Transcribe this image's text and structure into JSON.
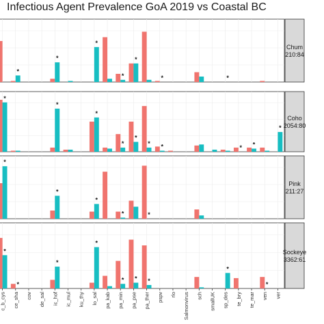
{
  "chart_data": {
    "type": "bar",
    "title": "Infectious Agent Prevalence GoA 2019 vs Coastal BC",
    "colors": {
      "goa": "#F0746E",
      "bc": "#17BEC2",
      "strip_bg": "#D9D9D9",
      "grid": "#EBEBEB"
    },
    "categories": [
      "c_b_cys",
      "ce_sha",
      "cov",
      "de_sal",
      "ic_hof",
      "ic_mul",
      "ku_thy",
      "lo_sal",
      "pa_kab",
      "pa_min",
      "pa_pse",
      "pa_ther",
      "pspv",
      "rlo",
      "Salmonvirus",
      "sch",
      "smallUK",
      "sp_des",
      "te_bry",
      "te_mar",
      "ven",
      "ver"
    ],
    "ylim": [
      0,
      1
    ],
    "panels": [
      {
        "strip_name": "Chum",
        "strip_value": "210:84",
        "goa": [
          0.75,
          0.02,
          0,
          0,
          0.06,
          0,
          0,
          0,
          0.82,
          0.15,
          0.34,
          0.92,
          0.02,
          0,
          0,
          0.18,
          0,
          0,
          0,
          0,
          0.02,
          0
        ],
        "bc": [
          0,
          0.12,
          0,
          0,
          0.36,
          0.02,
          0,
          0.64,
          0.06,
          0.04,
          0.34,
          0.04,
          0,
          0,
          0,
          0.1,
          0,
          0,
          0,
          0,
          0,
          0
        ],
        "stars": [
          1,
          4,
          7,
          9,
          10,
          12,
          17
        ]
      },
      {
        "strip_name": "Coho",
        "strip_value": "2054:80",
        "goa": [
          1.0,
          0.02,
          0,
          0,
          0.08,
          0.04,
          0,
          0.58,
          0.08,
          0.34,
          0.58,
          0.88,
          0.1,
          0.02,
          0,
          0.12,
          0,
          0.04,
          0.08,
          0.08,
          0.08,
          0
        ],
        "bc": [
          0.95,
          0.02,
          0,
          0,
          0.83,
          0.04,
          0,
          0.66,
          0.06,
          0.08,
          0.19,
          0.08,
          0.02,
          0,
          0,
          0.14,
          0.04,
          0.02,
          0,
          0.06,
          0.02,
          0.38
        ],
        "stars": [
          0,
          4,
          7,
          9,
          10,
          11,
          12,
          18,
          19,
          21
        ]
      },
      {
        "strip_name": "Pink",
        "strip_value": "211:27",
        "goa": [
          0.65,
          0,
          0,
          0,
          0.15,
          0,
          0,
          0.13,
          0.86,
          0.13,
          0.33,
          0.97,
          0,
          0,
          0,
          0.17,
          0,
          0,
          0,
          0,
          0,
          0
        ],
        "bc": [
          0.96,
          0,
          0,
          0,
          0.42,
          0,
          0,
          0.27,
          0,
          0.02,
          0.22,
          0,
          0,
          0,
          0,
          0.06,
          0,
          0,
          0,
          0,
          0,
          0
        ],
        "stars": [
          0,
          4,
          7,
          9,
          11
        ]
      },
      {
        "strip_name": "Sockeye",
        "strip_value": "3362:61",
        "goa": [
          0.88,
          0.08,
          0,
          0,
          0.15,
          0,
          0,
          0.1,
          0.22,
          0.48,
          0.85,
          0.75,
          0,
          0,
          0,
          0.2,
          0,
          0,
          0.18,
          0,
          0.2,
          0
        ],
        "bc": [
          0.58,
          0,
          0,
          0,
          0.38,
          0,
          0,
          0.72,
          0.04,
          0.08,
          0.1,
          0.06,
          0,
          0,
          0,
          0.02,
          0,
          0.27,
          0,
          0,
          0,
          0
        ],
        "stars": [
          0,
          1,
          4,
          7,
          9,
          10,
          11,
          17,
          20
        ]
      }
    ]
  }
}
